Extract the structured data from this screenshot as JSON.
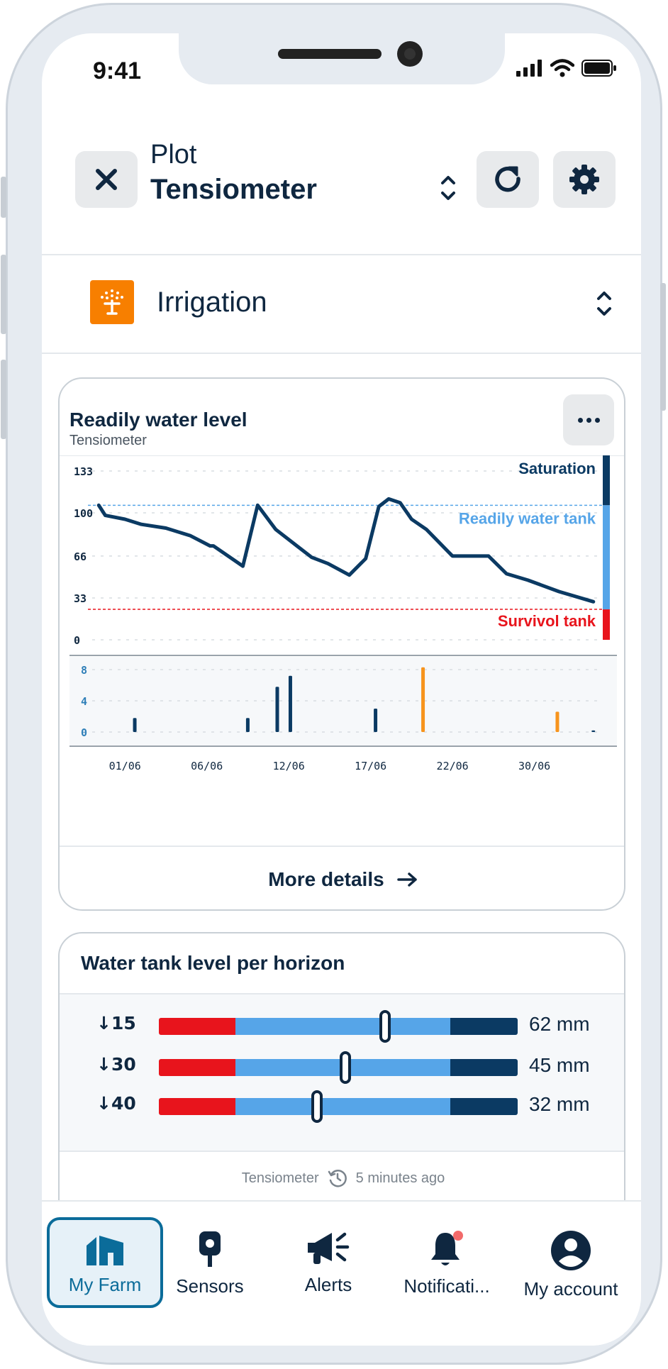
{
  "status_bar": {
    "time": "9:41"
  },
  "header": {
    "subtitle": "Plot",
    "title": "Tensiometer",
    "close_icon": "close-icon",
    "refresh_icon": "refresh-icon",
    "settings_icon": "gear-icon"
  },
  "category": {
    "label": "Irrigation",
    "icon": "sprinkler-icon",
    "icon_color": "#f77f00"
  },
  "chart_card": {
    "title": "Readily water level",
    "subtitle": "Tensiometer",
    "details_label": "More details",
    "zone_labels": {
      "saturation": "Saturation",
      "readily": "Readily water tank",
      "survival": "Survivol tank"
    },
    "colors": {
      "saturation": "#0b3a63",
      "readily": "#56a5e8",
      "survival": "#e8141c",
      "line": "#0b3a63",
      "rain": "#0b3a63",
      "irrigation": "#f7941d"
    }
  },
  "chart_data": [
    {
      "type": "line",
      "title": "Readily water level",
      "ylim": [
        0,
        133
      ],
      "y_ticks": [
        "133",
        "100",
        "66",
        "33",
        "0"
      ],
      "x_ticks": [
        "01/06",
        "06/06",
        "12/06",
        "17/06",
        "22/06",
        "30/06"
      ],
      "thresholds": {
        "readily_upper": 106,
        "survival_upper": 24
      },
      "series": [
        {
          "x": [
            -0.6,
            -0.2,
            1,
            2,
            3.5,
            5,
            6.2,
            6.4,
            8.2,
            9.1,
            10.2,
            11.5,
            12.4,
            13.4,
            14.7,
            15.7,
            16.5,
            17.1,
            17.8,
            18.5,
            19.4,
            21,
            23.2,
            24.3,
            25.6,
            27.5,
            29.6
          ],
          "y": [
            106,
            98,
            95,
            91,
            88,
            82,
            74,
            74,
            58,
            106,
            87,
            74,
            65,
            60,
            51,
            64,
            105,
            111,
            108,
            95,
            87,
            66,
            66,
            52,
            47,
            38,
            30
          ]
        }
      ],
      "grid": true
    },
    {
      "type": "bar",
      "ylim": [
        0,
        8
      ],
      "y_ticks": [
        "8",
        "4",
        "0"
      ],
      "series": [
        {
          "name": "rain",
          "x": [
            1.6,
            8.5,
            10.3,
            11.1,
            16.3,
            29.6
          ],
          "values": [
            1.8,
            1.8,
            5.8,
            7.2,
            3,
            0.2
          ]
        },
        {
          "name": "irrigation",
          "x": [
            19.2,
            27.4
          ],
          "values": [
            8.3,
            2.6
          ]
        }
      ]
    }
  ],
  "horizon_card": {
    "title": "Water tank level per horizon",
    "rows": [
      {
        "depth": "↓15",
        "level": 0.63,
        "value": "62 mm"
      },
      {
        "depth": "↓30",
        "level": 0.52,
        "value": "45 mm"
      },
      {
        "depth": "↓40",
        "level": 0.44,
        "value": "32 mm"
      }
    ],
    "footer_source": "Tensiometer",
    "footer_time": "5 minutes ago"
  },
  "bottom_nav": {
    "items": [
      {
        "label": "My Farm",
        "icon": "farm-icon",
        "active": true
      },
      {
        "label": "Sensors",
        "icon": "sensor-icon"
      },
      {
        "label": "Alerts",
        "icon": "megaphone-icon"
      },
      {
        "label": "Notificati...",
        "icon": "bell-icon"
      },
      {
        "label": "My account",
        "icon": "account-icon"
      }
    ]
  }
}
